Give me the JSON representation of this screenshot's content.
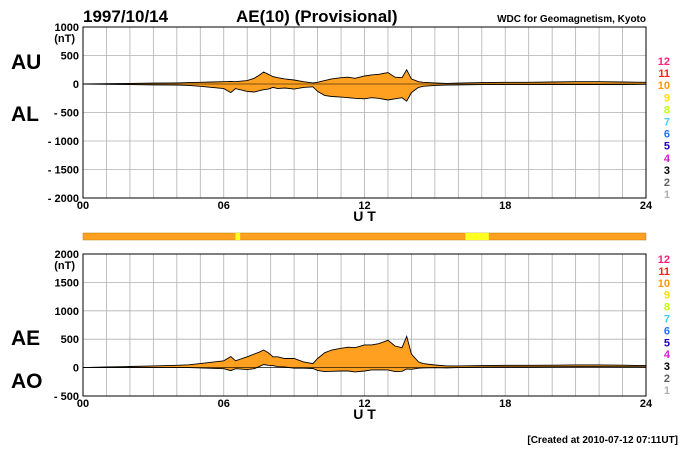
{
  "header": {
    "date": "1997/10/14",
    "title": "AE(10) (Provisional)",
    "source": "WDC for Geomagnetism, Kyoto"
  },
  "footer": {
    "created": "[Created at 2010-07-12 07:11UT]"
  },
  "colors": {
    "fill": "#ffa020",
    "grid": "#b0b0b0",
    "ao_line": "#90e040",
    "bar_highlight": "#ffff20"
  },
  "station_counts": {
    "labels": [
      "12",
      "11",
      "10",
      "9",
      "8",
      "7",
      "6",
      "5",
      "4",
      "3",
      "2",
      "1"
    ],
    "colors": [
      "#ff2080",
      "#ff2020",
      "#ff9a00",
      "#ffe000",
      "#c0ff00",
      "#40d0ff",
      "#2070ff",
      "#2000c0",
      "#d020d0",
      "#000000",
      "#606060",
      "#b0b0b0"
    ]
  },
  "chart_data": [
    {
      "type": "area",
      "panel": "AU/AL",
      "series_labels": [
        "AU",
        "AL"
      ],
      "units": "(nT)",
      "ylim": [
        -2000,
        1000
      ],
      "yticks": [
        "1000",
        "500",
        "0",
        "- 500",
        "- 1000",
        "- 1500",
        "- 2000"
      ],
      "xlim": [
        0,
        24
      ],
      "xticks": [
        "00",
        "06",
        "12",
        "18",
        "24"
      ],
      "xlabel": "U T",
      "x": [
        0,
        1,
        2,
        3,
        4,
        4.5,
        5,
        5.5,
        6,
        6.3,
        6.5,
        7,
        7.3,
        7.5,
        7.7,
        7.9,
        8.1,
        8.3,
        8.6,
        9,
        9.4,
        9.8,
        10,
        10.3,
        10.6,
        11,
        11.3,
        11.6,
        12,
        12.3,
        12.6,
        13,
        13.3,
        13.6,
        13.8,
        14,
        14.3,
        14.5,
        15,
        15.5,
        16,
        17,
        18,
        19,
        20,
        21,
        22,
        23,
        24
      ],
      "au": [
        0,
        5,
        10,
        15,
        20,
        25,
        30,
        35,
        40,
        45,
        40,
        60,
        100,
        150,
        210,
        170,
        130,
        110,
        90,
        70,
        40,
        20,
        30,
        60,
        90,
        110,
        120,
        100,
        140,
        160,
        170,
        200,
        120,
        110,
        250,
        90,
        40,
        30,
        20,
        10,
        15,
        25,
        30,
        30,
        35,
        40,
        40,
        35,
        30
      ],
      "al": [
        0,
        -5,
        -10,
        -15,
        -20,
        -25,
        -40,
        -60,
        -80,
        -150,
        -80,
        -130,
        -140,
        -120,
        -100,
        -90,
        -60,
        -80,
        -70,
        -90,
        -60,
        -50,
        -130,
        -200,
        -220,
        -230,
        -240,
        -250,
        -260,
        -240,
        -250,
        -280,
        -260,
        -240,
        -300,
        -150,
        -60,
        -40,
        -25,
        -20,
        -15,
        -10,
        -10,
        -10,
        -8,
        -8,
        -8,
        -8,
        -5
      ]
    },
    {
      "type": "area",
      "panel": "AE/AO",
      "series_labels": [
        "AE",
        "AO"
      ],
      "units": "(nT)",
      "ylim": [
        -500,
        2000
      ],
      "yticks": [
        "2000",
        "1500",
        "1000",
        "500",
        "0",
        "- 500"
      ],
      "xlim": [
        0,
        24
      ],
      "xticks": [
        "00",
        "06",
        "12",
        "18",
        "24"
      ],
      "xlabel": "U T",
      "x": [
        0,
        1,
        2,
        3,
        4,
        4.5,
        5,
        5.5,
        6,
        6.3,
        6.5,
        7,
        7.3,
        7.5,
        7.7,
        7.9,
        8.1,
        8.3,
        8.6,
        9,
        9.4,
        9.8,
        10,
        10.3,
        10.6,
        11,
        11.3,
        11.6,
        12,
        12.3,
        12.6,
        13,
        13.3,
        13.6,
        13.8,
        14,
        14.3,
        14.5,
        15,
        15.5,
        16,
        17,
        18,
        19,
        20,
        21,
        22,
        23,
        24
      ],
      "ae": [
        0,
        10,
        20,
        30,
        40,
        50,
        70,
        95,
        120,
        195,
        120,
        190,
        240,
        270,
        310,
        260,
        190,
        190,
        160,
        160,
        100,
        70,
        160,
        260,
        310,
        340,
        360,
        350,
        400,
        400,
        420,
        480,
        380,
        350,
        550,
        240,
        100,
        70,
        45,
        30,
        30,
        35,
        40,
        40,
        43,
        48,
        48,
        43,
        35
      ],
      "ao": [
        0,
        0,
        0,
        0,
        0,
        0,
        -5,
        -12,
        -20,
        -52,
        -20,
        -35,
        -20,
        15,
        55,
        40,
        35,
        15,
        10,
        -10,
        -10,
        -15,
        -50,
        -70,
        -65,
        -60,
        -60,
        -75,
        -60,
        -40,
        -40,
        -40,
        -70,
        -65,
        -25,
        -30,
        -10,
        -5,
        -2,
        -5,
        0,
        8,
        10,
        10,
        14,
        16,
        16,
        14,
        12
      ]
    }
  ],
  "availability_bar": {
    "highlight_hours": [
      [
        6.5,
        6.7
      ],
      [
        16.3,
        17.3
      ]
    ]
  }
}
